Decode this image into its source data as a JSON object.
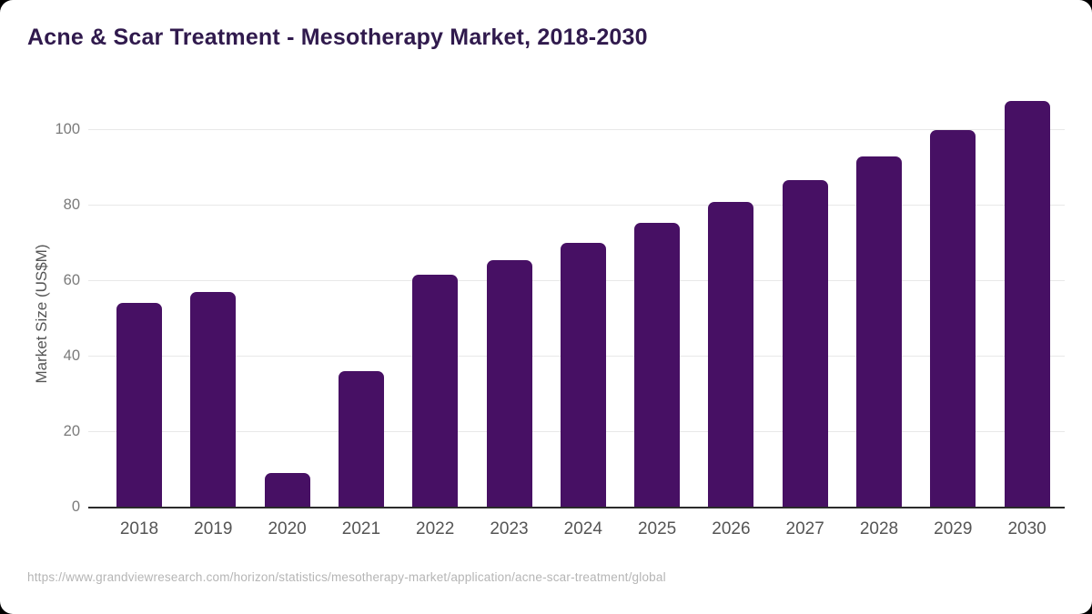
{
  "page": {
    "background_color": "#000000",
    "card_background_color": "#ffffff"
  },
  "header": {
    "title": "Acne & Scar Treatment - Mesotherapy Market, 2018-2030",
    "title_color": "#301a4d"
  },
  "chart_data": {
    "type": "bar",
    "title": "Acne & Scar Treatment - Mesotherapy Market, 2018-2030",
    "categories": [
      "2018",
      "2019",
      "2020",
      "2021",
      "2022",
      "2023",
      "2024",
      "2025",
      "2026",
      "2027",
      "2028",
      "2029",
      "2030"
    ],
    "values": [
      53.9,
      56.9,
      8.9,
      35.8,
      61.3,
      65.3,
      69.9,
      75.0,
      80.6,
      86.4,
      92.6,
      99.6,
      107.3
    ],
    "xlabel": "",
    "ylabel": "Market Size (US$M)",
    "ylim": [
      0,
      110
    ],
    "yticks": [
      0,
      20,
      40,
      60,
      80,
      100
    ],
    "grid": true,
    "legend_position": "none",
    "bar_color": "#471064",
    "gridline_color": "#e8e8e8",
    "axis_line_color": "#2b2b2b",
    "y_tick_label_color": "#7a7a7a",
    "x_tick_label_color": "#555555",
    "axis_title_color": "#555555"
  },
  "source": {
    "url_text": "https://www.grandviewresearch.com/horizon/statistics/mesotherapy-market/application/acne-scar-treatment/global",
    "color": "#b5b5b5"
  }
}
